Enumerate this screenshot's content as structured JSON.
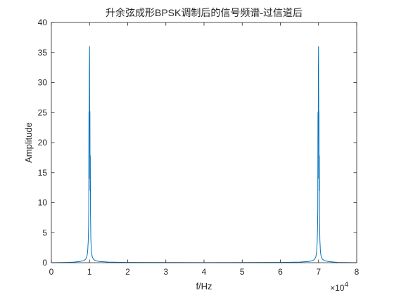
{
  "chart_data": {
    "type": "line",
    "title": "升余弦成形BPSK调制后的信号频谱-过信道后",
    "xlabel": "f/Hz",
    "ylabel": "Amplitude",
    "xlim": [
      0,
      80000
    ],
    "ylim": [
      0,
      40
    ],
    "x_ticks": [
      0,
      10000,
      20000,
      30000,
      40000,
      50000,
      60000,
      70000,
      80000
    ],
    "x_tick_labels": [
      "0",
      "1",
      "2",
      "3",
      "4",
      "5",
      "6",
      "7",
      "8"
    ],
    "x_exponent_label": "×10",
    "x_exponent_power": "4",
    "y_ticks": [
      0,
      5,
      10,
      15,
      20,
      25,
      30,
      35,
      40
    ],
    "y_tick_labels": [
      "0",
      "5",
      "10",
      "15",
      "20",
      "25",
      "30",
      "35",
      "40"
    ],
    "grid": false,
    "legend": "none",
    "colors": {
      "line": "#0072BD",
      "axis": "#262626",
      "background": "#ffffff"
    },
    "series": [
      {
        "x": [
          0,
          4000,
          6000,
          7500,
          8500,
          9000,
          9300,
          9500,
          9650,
          9750,
          9800,
          9850,
          9900,
          9950,
          10000,
          10050,
          10100,
          10150,
          10200,
          10250,
          10350,
          10500,
          10700,
          11000,
          11500,
          12500,
          15000,
          20000,
          30000,
          40000,
          50000,
          60000,
          65000,
          67500,
          68500,
          69000,
          69300,
          69500,
          69650,
          69750,
          69800,
          69850,
          69900,
          69950,
          70000,
          70050,
          70100,
          70150,
          70200,
          70250,
          70350,
          70500,
          70700,
          71000,
          71500,
          72500,
          75000,
          80000
        ],
        "y": [
          0.0,
          0.05,
          0.1,
          0.2,
          0.35,
          0.6,
          1.0,
          1.8,
          3.5,
          6.0,
          9.0,
          25.0,
          14.0,
          32.0,
          36.0,
          22.0,
          25.2,
          12.0,
          17.8,
          8.0,
          3.8,
          1.8,
          1.0,
          0.6,
          0.35,
          0.2,
          0.1,
          0.05,
          0.03,
          0.02,
          0.03,
          0.05,
          0.1,
          0.2,
          0.35,
          0.6,
          1.0,
          1.8,
          3.5,
          6.0,
          9.0,
          25.0,
          14.0,
          32.0,
          36.0,
          22.0,
          25.2,
          12.0,
          17.8,
          8.0,
          3.8,
          1.8,
          1.0,
          0.6,
          0.35,
          0.2,
          0.05,
          0.0
        ]
      }
    ]
  }
}
